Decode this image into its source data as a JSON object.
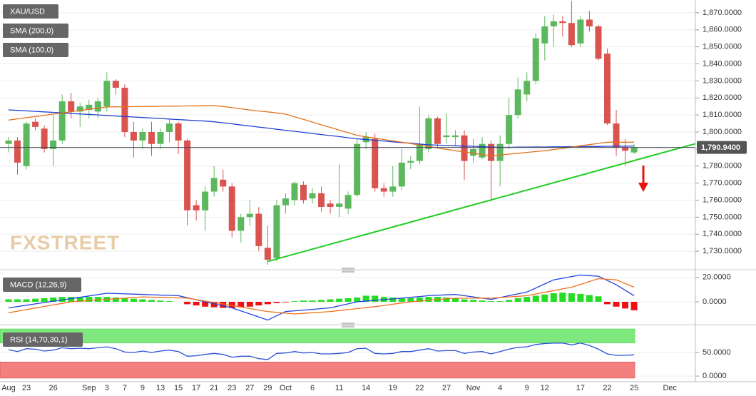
{
  "chart_data": [
    {
      "type": "candlestick",
      "title": "XAU/USD",
      "watermark": "FXSTREET",
      "categories": [
        "Aug",
        null,
        "23",
        null,
        null,
        "26",
        null,
        null,
        null,
        "Sep",
        null,
        "3",
        null,
        "7",
        null,
        "9",
        null,
        "13",
        null,
        "15",
        null,
        "17",
        null,
        "21",
        null,
        "23",
        null,
        "27",
        null,
        "29",
        null,
        "Oct",
        null,
        null,
        "6",
        null,
        null,
        "11",
        null,
        null,
        "14",
        null,
        null,
        "19",
        null,
        null,
        "22",
        null,
        null,
        "27",
        null,
        null,
        "Nov",
        null,
        null,
        "4",
        null,
        null,
        "9",
        null,
        "12",
        null,
        null,
        null,
        "17",
        null,
        null,
        "22",
        null,
        null,
        "25",
        null,
        null,
        null,
        "Dec"
      ],
      "open": [
        1793,
        1795,
        1780,
        1806,
        1802,
        1790,
        1795,
        1818,
        1812,
        1813,
        1812,
        1815,
        1830,
        1826,
        1800,
        1795,
        1800,
        1793,
        1800,
        1805,
        1795,
        1757,
        1754,
        1765,
        1772,
        1768,
        1742,
        1750,
        1752,
        1732,
        1726,
        1757,
        1760,
        1769,
        1761,
        1764,
        1758,
        1756,
        1755,
        1763,
        1794,
        1796,
        1767,
        1765,
        1768,
        1782,
        1783,
        1790,
        1808,
        1797,
        1797,
        1798,
        1786,
        1785,
        1793,
        1783,
        1793,
        1810,
        1822,
        1830,
        1852,
        1862,
        1865,
        1864,
        1852,
        1866,
        1862,
        1846,
        1805,
        1791,
        1788,
        null,
        null,
        null,
        null
      ],
      "high": [
        1797,
        1797,
        1806,
        1808,
        1804,
        1810,
        1822,
        1823,
        1817,
        1819,
        1820,
        1835,
        1831,
        1828,
        1806,
        1802,
        1806,
        1802,
        1808,
        1806,
        1796,
        1760,
        1768,
        1780,
        1778,
        1770,
        1752,
        1760,
        1756,
        1745,
        1760,
        1764,
        1771,
        1771,
        1767,
        1768,
        1760,
        1781,
        1765,
        1796,
        1800,
        1799,
        1770,
        1780,
        1790,
        1786,
        1815,
        1810,
        1809,
        1811,
        1801,
        1801,
        1796,
        1797,
        1795,
        1798,
        1820,
        1832,
        1835,
        1858,
        1868,
        1869,
        1868,
        1877,
        1868,
        1871,
        1863,
        1849,
        1813,
        1796,
        1793,
        null,
        null,
        null,
        null
      ],
      "low": [
        1788,
        1775,
        1778,
        1801,
        1788,
        1780,
        1793,
        1808,
        1803,
        1808,
        1808,
        1812,
        1822,
        1797,
        1785,
        1790,
        1786,
        1790,
        1794,
        1787,
        1745,
        1748,
        1742,
        1762,
        1765,
        1738,
        1735,
        1745,
        1730,
        1722,
        1724,
        1752,
        1757,
        1758,
        1758,
        1753,
        1752,
        1750,
        1752,
        1762,
        1790,
        1765,
        1762,
        1762,
        1766,
        1778,
        1781,
        1788,
        1791,
        1793,
        1792,
        1772,
        1782,
        1784,
        1759,
        1768,
        1790,
        1808,
        1818,
        1828,
        1842,
        1850,
        1856,
        1850,
        1850,
        1859,
        1842,
        1804,
        1786,
        1780,
        1787,
        null,
        null,
        null,
        null
      ],
      "close": [
        1795,
        1782,
        1805,
        1803,
        1790,
        1795,
        1818,
        1812,
        1815,
        1816,
        1818,
        1830,
        1826,
        1800,
        1795,
        1800,
        1793,
        1800,
        1805,
        1795,
        1754,
        1754,
        1765,
        1773,
        1768,
        1742,
        1750,
        1752,
        1733,
        1725,
        1757,
        1761,
        1770,
        1760,
        1764,
        1756,
        1756,
        1758,
        1763,
        1793,
        1797,
        1767,
        1765,
        1768,
        1782,
        1783,
        1793,
        1808,
        1793,
        1798,
        1798,
        1783,
        1790,
        1793,
        1783,
        1793,
        1810,
        1825,
        1830,
        1855,
        1862,
        1865,
        1864,
        1851,
        1866,
        1862,
        1843,
        1805,
        1791,
        1789,
        1790.94,
        null,
        null,
        null,
        null
      ],
      "up_color": "#5cb85c",
      "down_color": "#d9534f",
      "series": [
        {
          "name": "SMA (200,0)",
          "color": "#1f3fd1",
          "values": [
            1813,
            1812.7,
            1812.4,
            1812.1,
            1811.8,
            1811.5,
            1811.2,
            1810.9,
            1810.6,
            1810.3,
            1810,
            1809.7,
            1809.4,
            1809.1,
            1808.8,
            1808.5,
            1808.2,
            1807.9,
            1807.6,
            1807.3,
            1807,
            1806.7,
            1806.4,
            1806,
            1805.4,
            1804.8,
            1804.1,
            1803.5,
            1802.9,
            1802.3,
            1801.6,
            1801,
            1800.4,
            1799.8,
            1799.1,
            1798.5,
            1797.9,
            1797.3,
            1796.6,
            1796,
            1795.6,
            1795.1,
            1794.7,
            1794.2,
            1793.8,
            1793.4,
            1792.9,
            1792.5,
            1792.3,
            1792.1,
            1791.9,
            1791.7,
            1791.6,
            1791.4,
            1791.2,
            1791,
            1791,
            1791.1,
            1791.1,
            1791.2,
            1791.2,
            1791.3,
            1791.3,
            1791.4,
            1791.4,
            1791.5,
            1791.5,
            1791.6,
            1791.6,
            1791.7,
            1791.8,
            null,
            null,
            null,
            null
          ]
        },
        {
          "name": "SMA (100,0)",
          "color": "#e2731b",
          "values": [
            1807,
            1807.7,
            1808.4,
            1809.1,
            1809.8,
            1810.5,
            1811.2,
            1811.9,
            1812.6,
            1813.3,
            1814,
            1814.7,
            1814.8,
            1814.8,
            1814.9,
            1815,
            1815,
            1815.1,
            1815.2,
            1815.2,
            1815.3,
            1815.4,
            1815.4,
            1815.5,
            1815,
            1814.3,
            1813.6,
            1812.9,
            1812.3,
            1811.8,
            1811.2,
            1810.5,
            1808.9,
            1807.4,
            1805.8,
            1804.2,
            1802.7,
            1801.1,
            1799.6,
            1798,
            1797.2,
            1796.4,
            1795.6,
            1794.8,
            1794,
            1793.2,
            1792.3,
            1791.5,
            1790.7,
            1789.8,
            1789,
            1788.3,
            1787.5,
            1786.8,
            1786,
            1786.5,
            1787,
            1787.5,
            1788,
            1788.5,
            1789,
            1789.7,
            1790.4,
            1791.1,
            1791.9,
            1792.6,
            1793.3,
            1794,
            1794,
            1794,
            1794,
            null,
            null,
            null,
            null
          ]
        }
      ],
      "trendline": {
        "color": "#22cc22",
        "start_index": 29,
        "start_value": 1724,
        "end_index": 74,
        "end_value": 1789
      },
      "last_price": {
        "value": 1790.94,
        "label": "1,790.9400"
      },
      "ylim": [
        1720.4,
        1877.5
      ],
      "yticks": [
        {
          "value": 1730,
          "label": "1,730.0000"
        },
        {
          "value": 1740,
          "label": "1,740.0000"
        },
        {
          "value": 1750,
          "label": "1,750.0000"
        },
        {
          "value": 1760,
          "label": "1,760.0000"
        },
        {
          "value": 1770,
          "label": "1,770.0000"
        },
        {
          "value": 1780,
          "label": "1,780.0000"
        },
        {
          "value": 1790,
          "label": "1,790.0000"
        },
        {
          "value": 1800,
          "label": "1,800.0000"
        },
        {
          "value": 1810,
          "label": "1,810.0000"
        },
        {
          "value": 1820,
          "label": "1,820.0000"
        },
        {
          "value": 1830,
          "label": "1,830.0000"
        },
        {
          "value": 1840,
          "label": "1,840.0000"
        },
        {
          "value": 1850,
          "label": "1,850.0000"
        },
        {
          "value": 1860,
          "label": "1,860.0000"
        },
        {
          "value": 1870,
          "label": "1,870.0000"
        }
      ],
      "grid": true
    },
    {
      "type": "macd",
      "title": "MACD (12,26,9)",
      "values": [
        2,
        2,
        2,
        2.5,
        3,
        3.5,
        4,
        4,
        4,
        4,
        4,
        4,
        3.5,
        3,
        2.5,
        2,
        1.5,
        1,
        0.5,
        0,
        -2,
        -3,
        -4,
        -4.5,
        -5,
        -5,
        -4.5,
        -4,
        -3,
        -2,
        -1,
        -0.5,
        0.5,
        1,
        1,
        1.5,
        2,
        2.5,
        3,
        3.5,
        5,
        5,
        4,
        3.5,
        3,
        3,
        3.5,
        4,
        4,
        3.5,
        3,
        2,
        1.5,
        1,
        0.5,
        0.5,
        1.5,
        3,
        4,
        5,
        6,
        7,
        7.5,
        7,
        6.5,
        5.5,
        4.5,
        -2,
        -4,
        -5.5,
        -7,
        null,
        null,
        null,
        null
      ],
      "up_color": "#22dd22",
      "down_color": "#ee1111",
      "series": [
        {
          "color": "#2040e0",
          "values": [
            -5,
            -3.9,
            -2.8,
            -1.7,
            -0.6,
            0.5,
            1.5,
            2.6,
            3.7,
            4.8,
            5.9,
            7,
            6.8,
            6.5,
            6.3,
            6,
            5.8,
            5.5,
            5.3,
            5,
            3.3,
            1.7,
            0,
            -1.7,
            -3.3,
            -5,
            -7.5,
            -10,
            -12.5,
            -15,
            -11.5,
            -8,
            -7.4,
            -6.8,
            -6.2,
            -5.6,
            -5,
            -3.3,
            -1.7,
            0,
            0.6,
            1.2,
            1.8,
            2.4,
            3,
            3.7,
            4.3,
            5,
            5.3,
            5.7,
            6,
            5,
            4,
            3,
            2,
            3.5,
            5,
            6.5,
            8,
            11.3,
            14.7,
            18,
            19.3,
            20.7,
            22,
            21.5,
            21,
            17.5,
            14,
            9.5,
            5,
            null,
            null,
            null,
            null
          ]
        },
        {
          "color": "#f07020",
          "values": [
            -9,
            -7.7,
            -6.4,
            -5.1,
            -3.9,
            -2.6,
            -1.3,
            0,
            0.5,
            1,
            1.5,
            2,
            2.5,
            3,
            3.5,
            4,
            3.8,
            3.6,
            3.4,
            3.2,
            3,
            1.8,
            0.6,
            -0.6,
            -1.8,
            -3,
            -4.3,
            -5.5,
            -6.8,
            -8,
            -8.7,
            -9.3,
            -10,
            -9.5,
            -9,
            -8.5,
            -8,
            -7.2,
            -6.4,
            -5.6,
            -4.8,
            -4,
            -3,
            -2,
            -1,
            0,
            0.6,
            1.2,
            1.8,
            2.4,
            3,
            3,
            3,
            3,
            3,
            3.5,
            4,
            4.5,
            5,
            6.4,
            7.8,
            9.2,
            10.6,
            12,
            14.3,
            16.7,
            19,
            18.5,
            18,
            15,
            12,
            null,
            null,
            null,
            null
          ]
        }
      ],
      "ylim": [
        -17,
        24
      ],
      "yticks": [
        {
          "value": 0,
          "label": "0.0000"
        },
        {
          "value": 20,
          "label": "20.0000"
        }
      ],
      "grid": true
    },
    {
      "type": "rsi",
      "title": "RSI (14,70,30,1)",
      "series": [
        {
          "color": "#2a4fd8",
          "values": [
            56,
            52,
            58,
            57,
            53,
            55,
            60,
            58,
            59,
            58,
            60,
            62,
            58,
            51,
            50,
            53,
            50,
            53,
            55,
            52,
            42,
            43,
            46,
            48,
            46,
            40,
            42,
            42,
            37,
            35,
            48,
            49,
            52,
            49,
            50,
            47,
            47,
            48,
            50,
            58,
            59,
            48,
            47,
            48,
            52,
            52,
            55,
            58,
            53,
            54,
            54,
            48,
            51,
            52,
            47,
            52,
            57,
            61,
            62,
            67,
            69,
            70,
            70,
            66,
            70,
            65,
            57,
            47,
            44,
            44,
            45,
            null,
            null,
            null,
            null
          ]
        }
      ],
      "overbought": 70,
      "oversold": 30,
      "overbought_color": "#7ee87e",
      "oversold_color": "#f47f7f",
      "ylim": [
        -12,
        104.5
      ],
      "yticks": [
        {
          "value": 0,
          "label": "0.0000"
        },
        {
          "value": 50,
          "label": "50.0000"
        }
      ],
      "grid": true
    }
  ]
}
